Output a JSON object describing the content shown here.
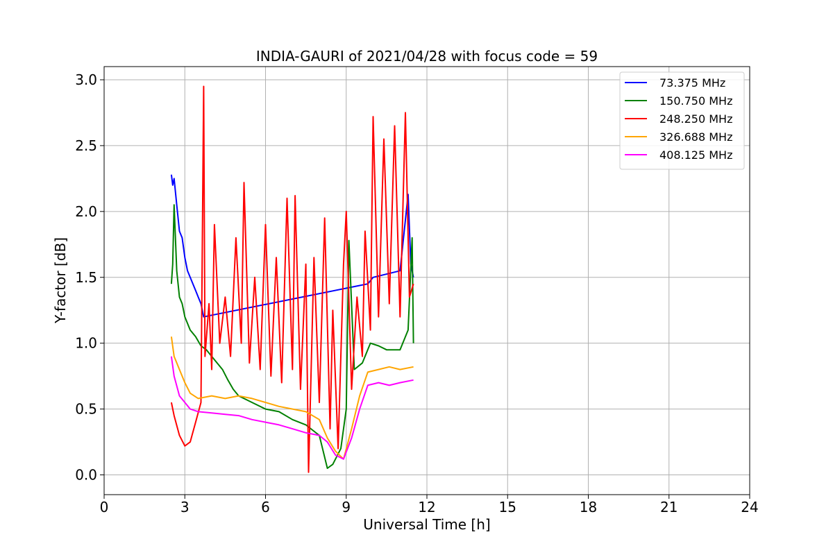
{
  "chart_data": {
    "type": "line",
    "title": "INDIA-GAURI of 2021/04/28 with focus code = 59",
    "xlabel": "Universal Time [h]",
    "ylabel": "Y-factor [dB]",
    "xlim": [
      0,
      24
    ],
    "ylim": [
      -0.15,
      3.1
    ],
    "xticks": [
      0,
      3,
      6,
      9,
      12,
      15,
      18,
      21,
      24
    ],
    "yticks": [
      0.0,
      0.5,
      1.0,
      1.5,
      2.0,
      2.5,
      3.0
    ],
    "xtick_labels": [
      "0",
      "3",
      "6",
      "9",
      "12",
      "15",
      "18",
      "21",
      "24"
    ],
    "ytick_labels": [
      "0.0",
      "0.5",
      "1.0",
      "1.5",
      "2.0",
      "2.5",
      "3.0"
    ],
    "grid": true,
    "legend_position": "top-right",
    "series": [
      {
        "name": "73.375 MHz",
        "label": " 73.375 MHz",
        "color": "#0000ff",
        "points": [
          [
            2.5,
            2.28
          ],
          [
            2.55,
            2.2
          ],
          [
            2.6,
            2.25
          ],
          [
            2.7,
            2.05
          ],
          [
            2.8,
            1.85
          ],
          [
            2.9,
            1.8
          ],
          [
            3.0,
            1.65
          ],
          [
            3.1,
            1.55
          ],
          [
            3.2,
            1.5
          ],
          [
            3.3,
            1.45
          ],
          [
            3.4,
            1.4
          ],
          [
            3.5,
            1.35
          ],
          [
            3.6,
            1.3
          ],
          [
            3.7,
            1.2
          ],
          [
            9.8,
            1.45
          ],
          [
            10.0,
            1.5
          ],
          [
            11.0,
            1.55
          ],
          [
            11.3,
            2.13
          ],
          [
            11.4,
            1.6
          ],
          [
            11.5,
            1.5
          ]
        ]
      },
      {
        "name": "150.750 MHz",
        "label": "150.750 MHz",
        "color": "#008000",
        "points": [
          [
            2.5,
            1.45
          ],
          [
            2.55,
            1.6
          ],
          [
            2.6,
            2.05
          ],
          [
            2.7,
            1.55
          ],
          [
            2.8,
            1.35
          ],
          [
            2.9,
            1.3
          ],
          [
            3.0,
            1.2
          ],
          [
            3.2,
            1.1
          ],
          [
            3.4,
            1.05
          ],
          [
            3.6,
            0.98
          ],
          [
            3.8,
            0.95
          ],
          [
            4.0,
            0.9
          ],
          [
            4.2,
            0.85
          ],
          [
            4.4,
            0.8
          ],
          [
            4.6,
            0.72
          ],
          [
            4.8,
            0.65
          ],
          [
            5.0,
            0.6
          ],
          [
            5.5,
            0.55
          ],
          [
            6.0,
            0.5
          ],
          [
            6.5,
            0.48
          ],
          [
            7.0,
            0.42
          ],
          [
            7.5,
            0.38
          ],
          [
            8.0,
            0.3
          ],
          [
            8.3,
            0.05
          ],
          [
            8.5,
            0.08
          ],
          [
            8.8,
            0.2
          ],
          [
            9.0,
            0.5
          ],
          [
            9.1,
            1.78
          ],
          [
            9.3,
            0.8
          ],
          [
            9.6,
            0.85
          ],
          [
            9.9,
            1.0
          ],
          [
            10.2,
            0.98
          ],
          [
            10.5,
            0.95
          ],
          [
            11.0,
            0.95
          ],
          [
            11.3,
            1.1
          ],
          [
            11.45,
            1.8
          ],
          [
            11.5,
            1.0
          ]
        ]
      },
      {
        "name": "248.250 MHz",
        "label": "248.250 MHz",
        "color": "#ff0000",
        "points": [
          [
            2.5,
            0.55
          ],
          [
            2.6,
            0.45
          ],
          [
            2.8,
            0.3
          ],
          [
            3.0,
            0.22
          ],
          [
            3.2,
            0.25
          ],
          [
            3.4,
            0.4
          ],
          [
            3.6,
            0.55
          ],
          [
            3.7,
            2.95
          ],
          [
            3.75,
            0.9
          ],
          [
            3.9,
            1.3
          ],
          [
            4.0,
            0.8
          ],
          [
            4.1,
            1.9
          ],
          [
            4.3,
            1.0
          ],
          [
            4.5,
            1.35
          ],
          [
            4.7,
            0.9
          ],
          [
            4.9,
            1.8
          ],
          [
            5.1,
            1.0
          ],
          [
            5.2,
            2.22
          ],
          [
            5.4,
            0.85
          ],
          [
            5.6,
            1.5
          ],
          [
            5.8,
            0.8
          ],
          [
            6.0,
            1.9
          ],
          [
            6.2,
            0.75
          ],
          [
            6.4,
            1.65
          ],
          [
            6.6,
            0.7
          ],
          [
            6.8,
            2.1
          ],
          [
            7.0,
            0.8
          ],
          [
            7.1,
            2.12
          ],
          [
            7.3,
            0.65
          ],
          [
            7.5,
            1.6
          ],
          [
            7.6,
            0.02
          ],
          [
            7.8,
            1.65
          ],
          [
            8.0,
            0.55
          ],
          [
            8.2,
            1.95
          ],
          [
            8.4,
            0.35
          ],
          [
            8.5,
            1.25
          ],
          [
            8.7,
            0.2
          ],
          [
            8.9,
            1.6
          ],
          [
            9.0,
            2.0
          ],
          [
            9.2,
            0.65
          ],
          [
            9.4,
            1.35
          ],
          [
            9.6,
            0.9
          ],
          [
            9.7,
            1.85
          ],
          [
            9.9,
            1.1
          ],
          [
            10.0,
            2.72
          ],
          [
            10.2,
            1.2
          ],
          [
            10.4,
            2.55
          ],
          [
            10.6,
            1.3
          ],
          [
            10.8,
            2.65
          ],
          [
            11.0,
            1.2
          ],
          [
            11.2,
            2.75
          ],
          [
            11.35,
            1.35
          ],
          [
            11.5,
            1.45
          ]
        ]
      },
      {
        "name": "326.688 MHz",
        "label": "326.688 MHz",
        "color": "#ffa500",
        "points": [
          [
            2.5,
            1.05
          ],
          [
            2.6,
            0.9
          ],
          [
            2.8,
            0.8
          ],
          [
            3.0,
            0.7
          ],
          [
            3.2,
            0.62
          ],
          [
            3.5,
            0.58
          ],
          [
            4.0,
            0.6
          ],
          [
            4.5,
            0.58
          ],
          [
            5.0,
            0.6
          ],
          [
            5.5,
            0.58
          ],
          [
            6.0,
            0.55
          ],
          [
            6.5,
            0.52
          ],
          [
            7.0,
            0.5
          ],
          [
            7.5,
            0.48
          ],
          [
            8.0,
            0.42
          ],
          [
            8.3,
            0.28
          ],
          [
            8.6,
            0.18
          ],
          [
            8.9,
            0.12
          ],
          [
            9.2,
            0.35
          ],
          [
            9.5,
            0.6
          ],
          [
            9.8,
            0.78
          ],
          [
            10.2,
            0.8
          ],
          [
            10.6,
            0.82
          ],
          [
            11.0,
            0.8
          ],
          [
            11.5,
            0.82
          ]
        ]
      },
      {
        "name": "408.125 MHz",
        "label": "408.125 MHz",
        "color": "#ff00ff",
        "points": [
          [
            2.5,
            0.9
          ],
          [
            2.6,
            0.75
          ],
          [
            2.8,
            0.6
          ],
          [
            3.0,
            0.55
          ],
          [
            3.2,
            0.5
          ],
          [
            3.5,
            0.48
          ],
          [
            4.0,
            0.47
          ],
          [
            4.5,
            0.46
          ],
          [
            5.0,
            0.45
          ],
          [
            5.5,
            0.42
          ],
          [
            6.0,
            0.4
          ],
          [
            6.5,
            0.38
          ],
          [
            7.0,
            0.35
          ],
          [
            7.5,
            0.32
          ],
          [
            8.0,
            0.3
          ],
          [
            8.3,
            0.25
          ],
          [
            8.6,
            0.15
          ],
          [
            8.9,
            0.12
          ],
          [
            9.2,
            0.28
          ],
          [
            9.5,
            0.5
          ],
          [
            9.8,
            0.68
          ],
          [
            10.2,
            0.7
          ],
          [
            10.6,
            0.68
          ],
          [
            11.0,
            0.7
          ],
          [
            11.5,
            0.72
          ]
        ]
      }
    ]
  }
}
